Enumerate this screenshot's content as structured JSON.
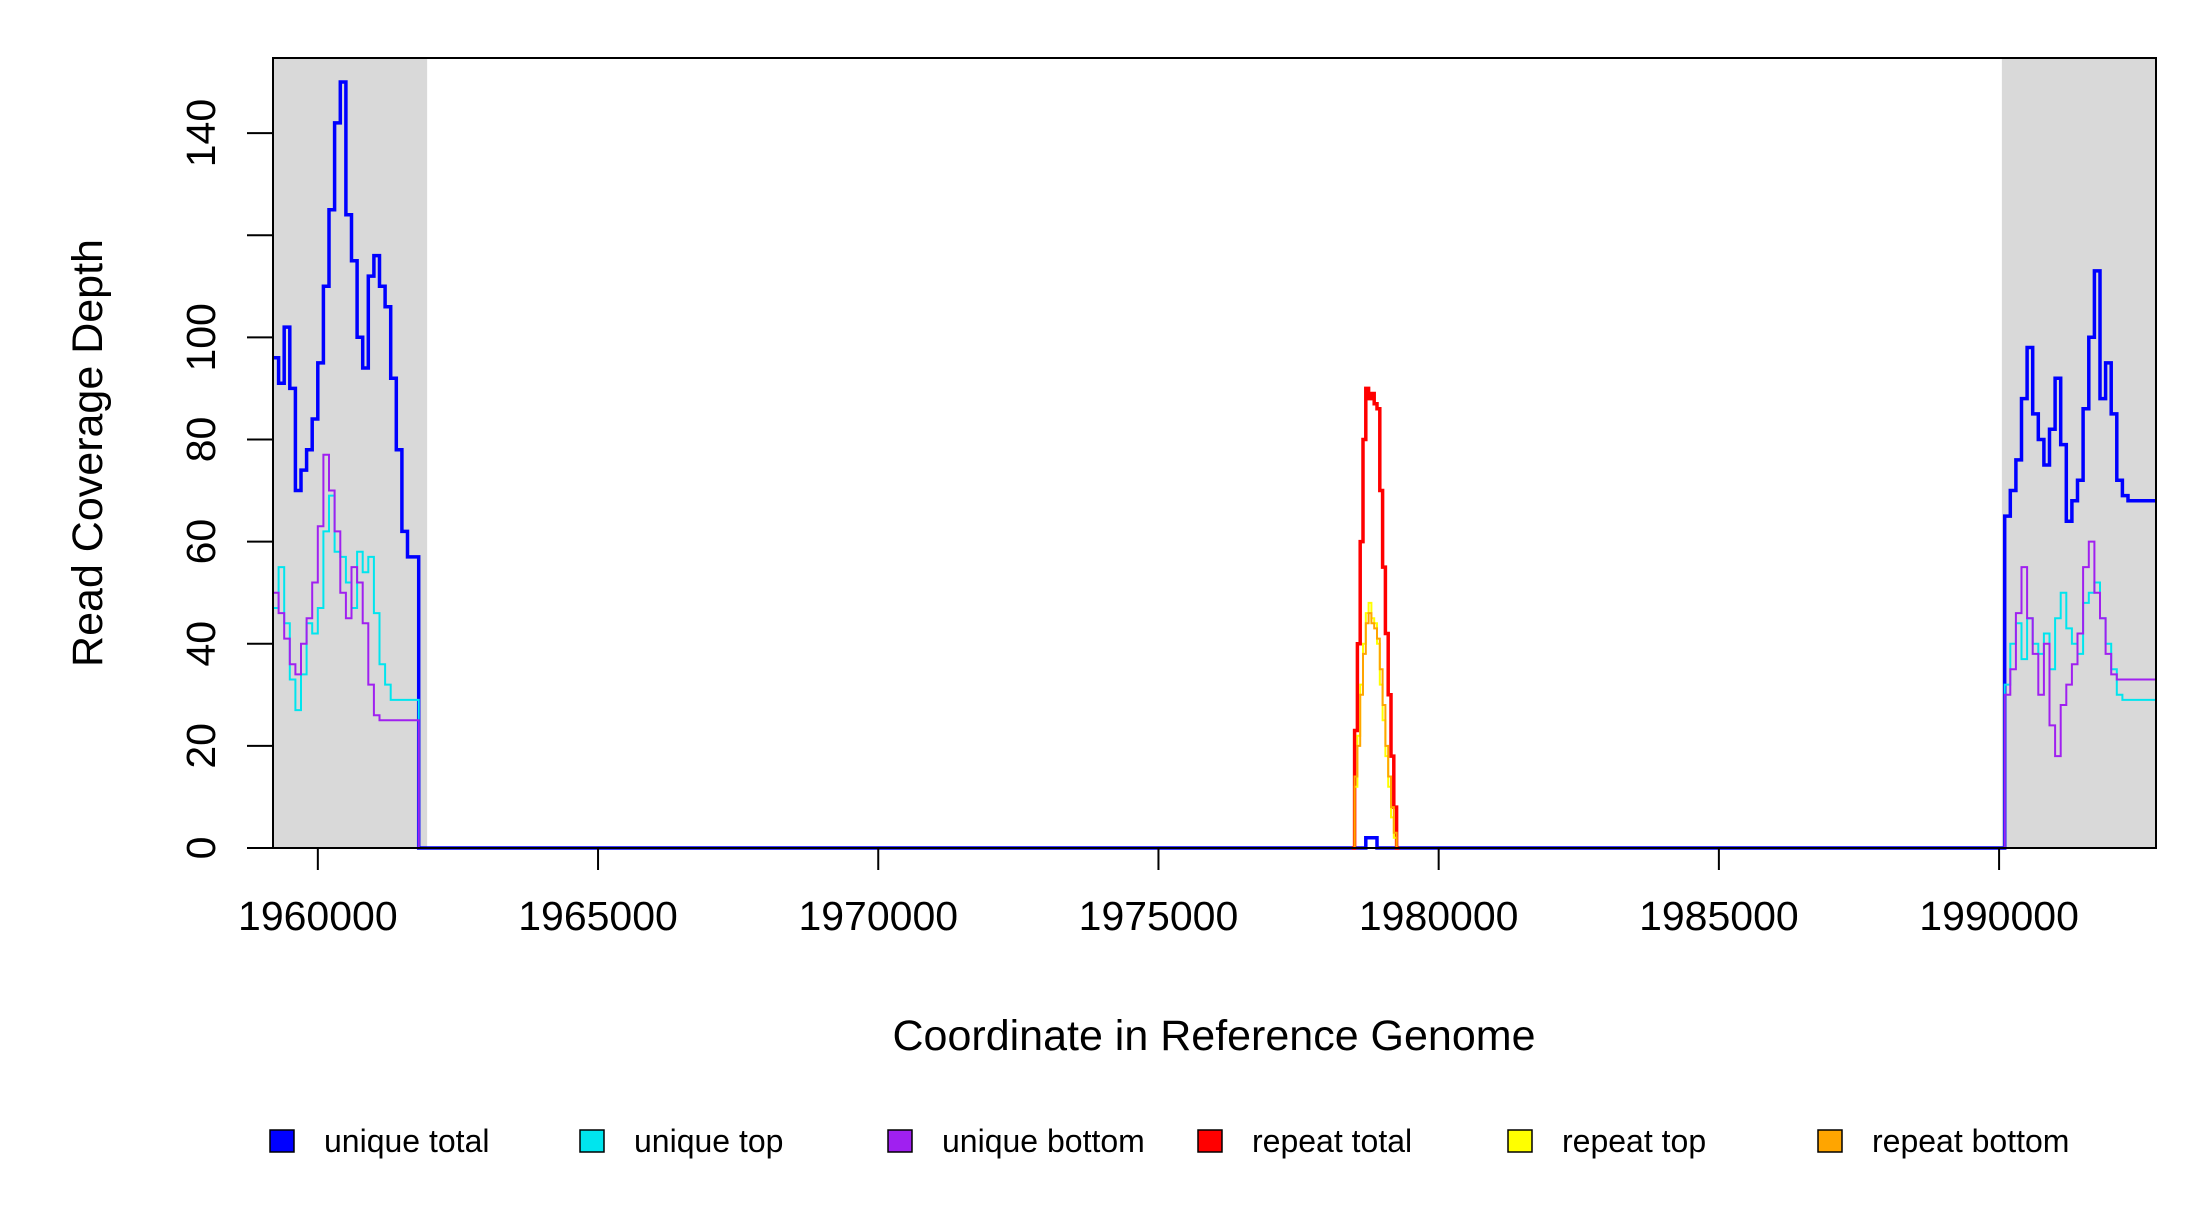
{
  "chart_data": {
    "type": "line",
    "title": "",
    "xlabel": "Coordinate in Reference Genome",
    "ylabel": "Read Coverage Depth",
    "xlim": [
      1959200,
      1992800
    ],
    "ylim": [
      0,
      150
    ],
    "x_ticks": [
      1960000,
      1965000,
      1970000,
      1975000,
      1980000,
      1985000,
      1990000
    ],
    "y_ticks": [
      0,
      20,
      40,
      60,
      80,
      100,
      120,
      140
    ],
    "y_tick_labels": [
      "0",
      "20",
      "40",
      "60",
      "80",
      "100",
      "",
      "140"
    ],
    "grid": false,
    "legend_position": "bottom",
    "shaded_regions": [
      {
        "x0": 1959200,
        "x1": 1961950,
        "color": "#d9d9d9"
      },
      {
        "x0": 1990050,
        "x1": 1992800,
        "color": "#d9d9d9"
      }
    ],
    "series": [
      {
        "name": "unique total",
        "color": "#0000ff",
        "x": [
          1959200,
          1959300,
          1959400,
          1959500,
          1959600,
          1959700,
          1959800,
          1959900,
          1960000,
          1960100,
          1960200,
          1960300,
          1960400,
          1960500,
          1960600,
          1960700,
          1960800,
          1960900,
          1961000,
          1961100,
          1961200,
          1961300,
          1961400,
          1961500,
          1961600,
          1961700,
          1961800,
          1961900,
          1961950,
          1962000,
          1978500,
          1978700,
          1978900,
          1979300,
          1990000,
          1990100,
          1990200,
          1990300,
          1990400,
          1990500,
          1990600,
          1990700,
          1990800,
          1990900,
          1991000,
          1991100,
          1991200,
          1991300,
          1991400,
          1991500,
          1991600,
          1991700,
          1991800,
          1991900,
          1992000,
          1992100,
          1992200,
          1992300,
          1992400,
          1992500,
          1992600,
          1992700,
          1992800
        ],
        "y": [
          96,
          91,
          102,
          90,
          70,
          74,
          78,
          84,
          95,
          110,
          125,
          142,
          150,
          124,
          115,
          100,
          94,
          112,
          116,
          110,
          106,
          92,
          78,
          62,
          57,
          57,
          0,
          0,
          0,
          0,
          0,
          2,
          0,
          0,
          0,
          65,
          70,
          76,
          88,
          98,
          85,
          80,
          75,
          82,
          92,
          79,
          64,
          68,
          72,
          86,
          100,
          113,
          88,
          95,
          85,
          72,
          69,
          68,
          68,
          68,
          68,
          68,
          68
        ]
      },
      {
        "name": "unique top",
        "color": "#00e5ee",
        "x": [
          1959200,
          1959300,
          1959400,
          1959500,
          1959600,
          1959700,
          1959800,
          1959900,
          1960000,
          1960100,
          1960200,
          1960300,
          1960400,
          1960500,
          1960600,
          1960700,
          1960800,
          1960900,
          1961000,
          1961100,
          1961200,
          1961300,
          1961400,
          1961500,
          1961600,
          1961700,
          1961800,
          1961900,
          1961950,
          1962000,
          1990000,
          1990100,
          1990200,
          1990300,
          1990400,
          1990500,
          1990600,
          1990700,
          1990800,
          1990900,
          1991000,
          1991100,
          1991200,
          1991300,
          1991400,
          1991500,
          1991600,
          1991700,
          1991800,
          1991900,
          1992000,
          1992100,
          1992200,
          1992300,
          1992400,
          1992500,
          1992600,
          1992700,
          1992800
        ],
        "y": [
          47,
          55,
          44,
          33,
          27,
          34,
          44,
          42,
          47,
          62,
          69,
          58,
          57,
          52,
          47,
          58,
          54,
          57,
          46,
          36,
          32,
          29,
          29,
          29,
          29,
          29,
          0,
          0,
          0,
          0,
          0,
          32,
          40,
          44,
          37,
          45,
          40,
          38,
          42,
          35,
          45,
          50,
          43,
          40,
          38,
          48,
          50,
          52,
          45,
          40,
          35,
          30,
          29,
          29,
          29,
          29,
          29,
          29,
          29
        ]
      },
      {
        "name": "unique bottom",
        "color": "#a020f0",
        "x": [
          1959200,
          1959300,
          1959400,
          1959500,
          1959600,
          1959700,
          1959800,
          1959900,
          1960000,
          1960100,
          1960200,
          1960300,
          1960400,
          1960500,
          1960600,
          1960700,
          1960800,
          1960900,
          1961000,
          1961100,
          1961200,
          1961300,
          1961400,
          1961500,
          1961600,
          1961700,
          1961800,
          1961900,
          1961950,
          1962000,
          1990000,
          1990100,
          1990200,
          1990300,
          1990400,
          1990500,
          1990600,
          1990700,
          1990800,
          1990900,
          1991000,
          1991100,
          1991200,
          1991300,
          1991400,
          1991500,
          1991600,
          1991700,
          1991800,
          1991900,
          1992000,
          1992100,
          1992200,
          1992300,
          1992400,
          1992500,
          1992600,
          1992700,
          1992800
        ],
        "y": [
          50,
          46,
          41,
          36,
          34,
          40,
          45,
          52,
          63,
          77,
          70,
          62,
          50,
          45,
          55,
          52,
          44,
          32,
          26,
          25,
          25,
          25,
          25,
          25,
          25,
          25,
          0,
          0,
          0,
          0,
          0,
          30,
          35,
          46,
          55,
          45,
          38,
          30,
          40,
          24,
          18,
          28,
          32,
          36,
          42,
          55,
          60,
          50,
          45,
          38,
          34,
          33,
          33,
          33,
          33,
          33,
          33,
          33,
          33
        ]
      },
      {
        "name": "repeat total",
        "color": "#ff0000",
        "x": [
          1978450,
          1978500,
          1978550,
          1978600,
          1978650,
          1978700,
          1978750,
          1978800,
          1978850,
          1978900,
          1978950,
          1979000,
          1979050,
          1979100,
          1979150,
          1979200,
          1979250,
          1979300
        ],
        "y": [
          0,
          23,
          40,
          60,
          80,
          90,
          88,
          89,
          87,
          86,
          70,
          55,
          42,
          30,
          18,
          8,
          0,
          0
        ]
      },
      {
        "name": "repeat top",
        "color": "#ffff00",
        "x": [
          1978450,
          1978500,
          1978550,
          1978600,
          1978650,
          1978700,
          1978750,
          1978800,
          1978850,
          1978900,
          1978950,
          1979000,
          1979050,
          1979100,
          1979150,
          1979200,
          1979250,
          1979300
        ],
        "y": [
          0,
          12,
          22,
          32,
          40,
          46,
          48,
          45,
          44,
          40,
          32,
          25,
          18,
          12,
          6,
          2,
          0,
          0
        ]
      },
      {
        "name": "repeat bottom",
        "color": "#ffa500",
        "x": [
          1978450,
          1978500,
          1978550,
          1978600,
          1978650,
          1978700,
          1978750,
          1978800,
          1978850,
          1978900,
          1978950,
          1979000,
          1979050,
          1979100,
          1979150,
          1979200,
          1979250,
          1979300
        ],
        "y": [
          0,
          14,
          20,
          30,
          38,
          44,
          46,
          44,
          43,
          41,
          35,
          28,
          20,
          14,
          8,
          3,
          0,
          0
        ]
      }
    ]
  }
}
